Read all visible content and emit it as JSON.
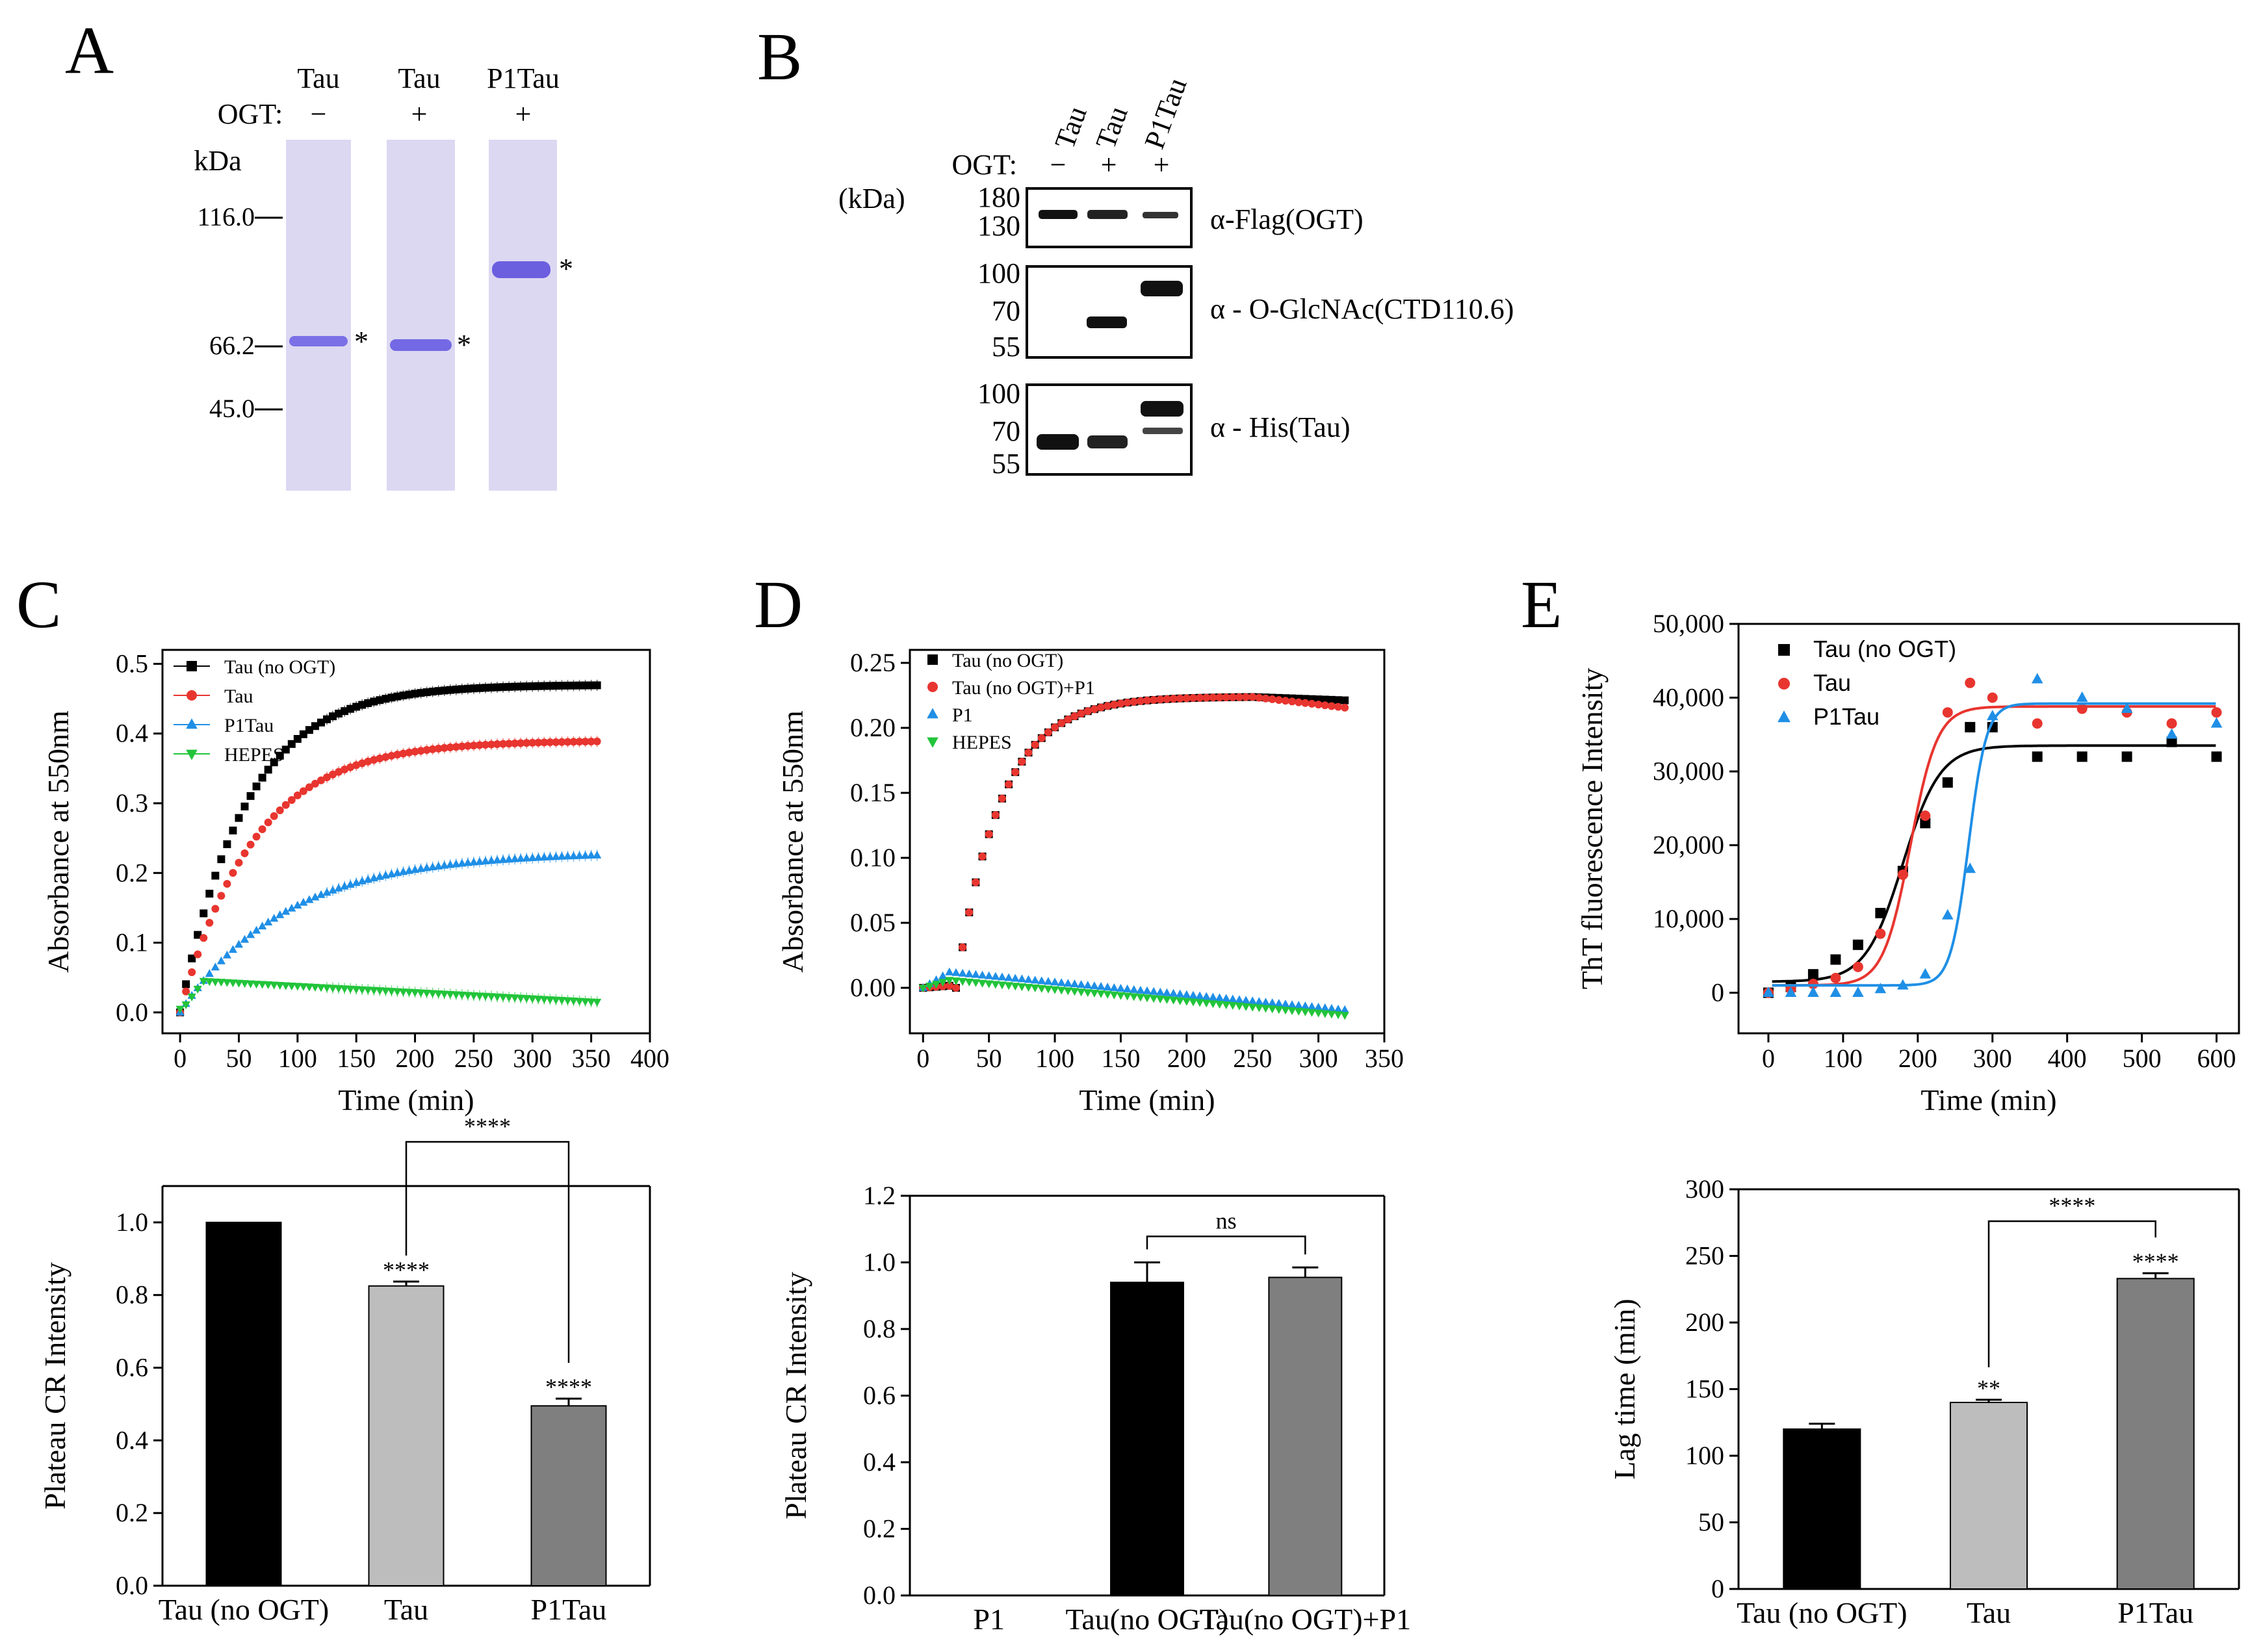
{
  "panel_labels": {
    "a": "A",
    "b": "B",
    "c": "C",
    "d": "D",
    "e": "E"
  },
  "gel_a": {
    "lanes": [
      "Tau",
      "Tau",
      "P1Tau"
    ],
    "ogt_label": "OGT:",
    "ogt_signs": [
      "−",
      "+",
      "+"
    ],
    "unit": "kDa",
    "markers": [
      "116.0",
      "66.2",
      "45.0"
    ],
    "band_mark": "*"
  },
  "blot_b": {
    "lanes": [
      "Tau",
      "Tau",
      "P1Tau"
    ],
    "ogt_label": "OGT:",
    "ogt_signs": [
      "−",
      "+",
      "+"
    ],
    "unit": "(kDa)",
    "blots": [
      {
        "label": "α-Flag(OGT)",
        "markers": [
          "180",
          "130"
        ]
      },
      {
        "label": "α - O-GlcNAc(CTD110.6)",
        "markers": [
          "100",
          "70",
          "55"
        ]
      },
      {
        "label": "α - His(Tau)",
        "markers": [
          "100",
          "70",
          "55"
        ]
      }
    ]
  },
  "colors": {
    "black": "#000000",
    "red": "#e8352f",
    "blue": "#1f8fe6",
    "green": "#22c43a",
    "bar_light": "#bdbdbd",
    "bar_dark": "#7f7f7f",
    "gel_bg": "#dcd8f2",
    "band": "#6b5fe0"
  },
  "chart_data": [
    {
      "id": "C-top",
      "type": "line",
      "xlabel": "Time (min)",
      "ylabel": "Absorbance at 550nm",
      "xlim": [
        -15,
        400
      ],
      "ylim": [
        -0.03,
        0.52
      ],
      "xticks": [
        0,
        50,
        100,
        150,
        200,
        250,
        300,
        350,
        400
      ],
      "yticks": [
        0.0,
        0.1,
        0.2,
        0.3,
        0.4,
        0.5
      ],
      "ytick_labels": [
        "0.0",
        "0.1",
        "0.2",
        "0.3",
        "0.4",
        "0.5"
      ],
      "legend_position": "top-left",
      "series": [
        {
          "name": "Tau (no OGT)",
          "color": "black",
          "marker": "square",
          "plateau": 0.47,
          "k": 0.018
        },
        {
          "name": "Tau",
          "color": "red",
          "marker": "circle",
          "plateau": 0.39,
          "k": 0.016
        },
        {
          "name": "P1Tau",
          "color": "blue",
          "marker": "triangle-up",
          "plateau": 0.23,
          "k": 0.011
        },
        {
          "name": "HEPES",
          "color": "green",
          "marker": "triangle-down",
          "start": 0.045,
          "end": 0.015
        }
      ]
    },
    {
      "id": "D-top",
      "type": "line",
      "xlabel": "Time (min)",
      "ylabel": "Absorbance at 550nm",
      "xlim": [
        -10,
        350
      ],
      "ylim": [
        -0.035,
        0.26
      ],
      "xticks": [
        0,
        50,
        100,
        150,
        200,
        250,
        300,
        350
      ],
      "yticks": [
        0.0,
        0.05,
        0.1,
        0.15,
        0.2,
        0.25
      ],
      "ytick_labels": [
        "0.00",
        "0.05",
        "0.10",
        "0.15",
        "0.20",
        "0.25"
      ],
      "legend_position": "top-left",
      "series": [
        {
          "name": "Tau (no OGT)",
          "color": "black",
          "marker": "square"
        },
        {
          "name": "Tau (no OGT)+P1",
          "color": "red",
          "marker": "circle"
        },
        {
          "name": "P1",
          "color": "blue",
          "marker": "triangle-up"
        },
        {
          "name": "HEPES",
          "color": "green",
          "marker": "triangle-down"
        }
      ]
    },
    {
      "id": "E-top",
      "type": "scatter",
      "xlabel": "Time (min)",
      "ylabel": "ThT fluorescence Intensity",
      "xlim": [
        -40,
        630
      ],
      "ylim": [
        -5500,
        50000
      ],
      "xticks": [
        0,
        100,
        200,
        300,
        400,
        500,
        600
      ],
      "yticks": [
        0,
        10000,
        20000,
        30000,
        40000,
        50000
      ],
      "ytick_labels": [
        "0",
        "10,000",
        "20,000",
        "30,000",
        "40,000",
        "50,000"
      ],
      "legend_position": "top-left",
      "x": [
        0,
        30,
        60,
        90,
        120,
        150,
        180,
        210,
        240,
        270,
        300,
        360,
        420,
        480,
        540,
        600
      ],
      "series": [
        {
          "name": "Tau (no OGT)",
          "color": "black",
          "marker": "square",
          "values": [
            0,
            800,
            2500,
            4500,
            6500,
            10800,
            16500,
            23000,
            28500,
            36000,
            36000,
            32000,
            32000,
            32000,
            34000,
            32000
          ],
          "fit": {
            "bottom": 1500,
            "top": 33500,
            "x0": 180,
            "w": 25
          }
        },
        {
          "name": "Tau",
          "color": "red",
          "marker": "circle",
          "values": [
            0,
            500,
            1200,
            2000,
            3500,
            8000,
            16000,
            24000,
            38000,
            42000,
            40000,
            36500,
            38500,
            38000,
            36500,
            38000
          ],
          "fit": {
            "bottom": 1000,
            "top": 38800,
            "x0": 190,
            "w": 18
          }
        },
        {
          "name": "P1Tau",
          "color": "blue",
          "marker": "triangle-up",
          "values": [
            0,
            0,
            0,
            0,
            0,
            500,
            1000,
            2500,
            10500,
            16800,
            37500,
            42500,
            40000,
            38500,
            35000,
            36500
          ],
          "fit": {
            "bottom": 1000,
            "top": 39200,
            "x0": 268,
            "w": 12
          }
        }
      ]
    },
    {
      "id": "C-bottom",
      "type": "bar",
      "ylabel": "Plateau CR Intensity",
      "categories": [
        "Tau (no OGT)",
        "Tau",
        "P1Tau"
      ],
      "values": [
        1.0,
        0.825,
        0.495
      ],
      "errors": [
        0,
        0.012,
        0.02
      ],
      "bar_colors": [
        "black",
        "bar_light",
        "bar_dark"
      ],
      "ylim": [
        0,
        1.1
      ],
      "yticks": [
        0.0,
        0.2,
        0.4,
        0.6,
        0.8,
        1.0
      ],
      "ytick_labels": [
        "0.0",
        "0.2",
        "0.4",
        "0.6",
        "0.8",
        "1.0"
      ],
      "bar_labels": [
        "",
        "****",
        "****"
      ],
      "bracket": {
        "from": 1,
        "to": 2,
        "label": "****"
      }
    },
    {
      "id": "D-bottom",
      "type": "bar",
      "ylabel": "Plateau CR Intensity",
      "categories": [
        "P1",
        "Tau(no OGT)",
        "Tau(no OGT)+P1"
      ],
      "values": [
        0,
        0.94,
        0.955
      ],
      "errors": [
        0,
        0.06,
        0.03
      ],
      "bar_colors": [
        "black",
        "black",
        "bar_dark"
      ],
      "ylim": [
        0,
        1.2
      ],
      "yticks": [
        0.0,
        0.2,
        0.4,
        0.6,
        0.8,
        1.0,
        1.2
      ],
      "ytick_labels": [
        "0.0",
        "0.2",
        "0.4",
        "0.6",
        "0.8",
        "1.0",
        "1.2"
      ],
      "bar_labels": [
        "",
        "",
        ""
      ],
      "bracket": {
        "from": 1,
        "to": 2,
        "label": "ns"
      }
    },
    {
      "id": "E-bottom",
      "type": "bar",
      "ylabel": "Lag time (min)",
      "categories": [
        "Tau (no OGT)",
        "Tau",
        "P1Tau"
      ],
      "values": [
        120,
        140,
        233
      ],
      "errors": [
        4,
        2,
        4
      ],
      "bar_colors": [
        "black",
        "bar_light",
        "bar_dark"
      ],
      "ylim": [
        0,
        300
      ],
      "yticks": [
        0,
        50,
        100,
        150,
        200,
        250,
        300
      ],
      "ytick_labels": [
        "0",
        "50",
        "100",
        "150",
        "200",
        "250",
        "300"
      ],
      "bar_labels": [
        "",
        "**",
        "****"
      ],
      "bracket": {
        "from": 1,
        "to": 2,
        "label": "****"
      }
    }
  ]
}
